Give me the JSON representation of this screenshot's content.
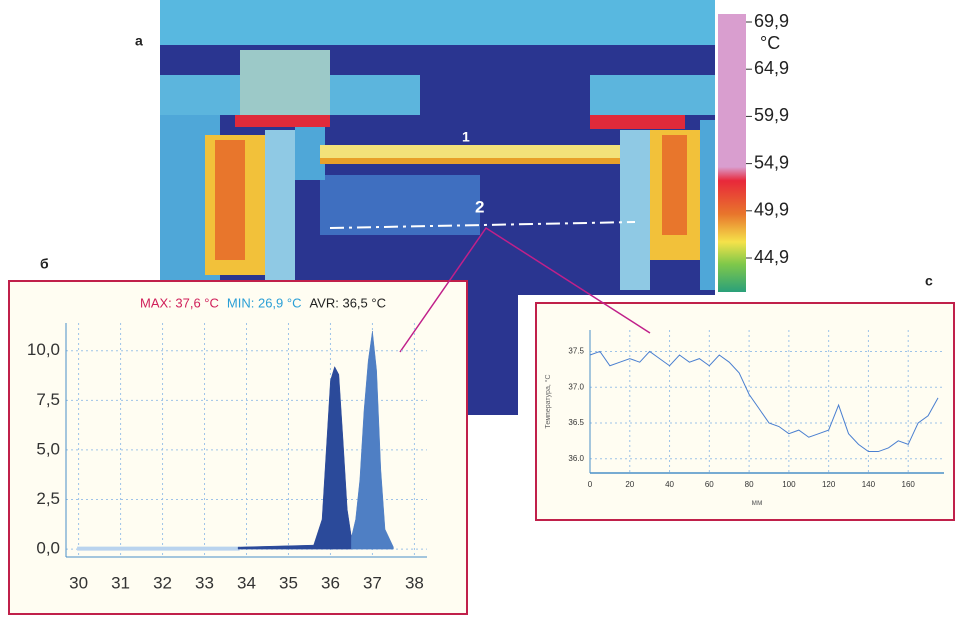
{
  "panel_labels": {
    "a": "а",
    "b": "б",
    "c": "c"
  },
  "thermal": {
    "unit": "°C",
    "markers": [
      "1",
      "2"
    ],
    "scale_ticks": [
      {
        "value": 69.9,
        "label": "69,9"
      },
      {
        "value": 64.9,
        "label": "64,9"
      },
      {
        "value": 59.9,
        "label": "59,9"
      },
      {
        "value": 54.9,
        "label": "54,9"
      },
      {
        "value": 49.9,
        "label": "49,9"
      },
      {
        "value": 44.9,
        "label": "44,9"
      }
    ],
    "scale_lim": [
      44.9,
      69.9
    ]
  },
  "chart_data": [
    {
      "type": "area",
      "stats": [
        {
          "text": "MAX: 37,6 °C",
          "color": "#d0205a"
        },
        {
          "text": "MIN: 26,9 °C",
          "color": "#2a9fd6"
        },
        {
          "text": "AVR: 36,5 °C",
          "color": "#222222"
        }
      ],
      "x": [
        30,
        33.8,
        35.6,
        35.8,
        35.9,
        36.0,
        36.1,
        36.2,
        36.3,
        36.4,
        36.5,
        36.6,
        36.7,
        36.8,
        36.9,
        37.0,
        37.1,
        37.2,
        37.3,
        37.5
      ],
      "series": [
        {
          "color": "#b9d3ee",
          "values": [
            0.05,
            0.05,
            null,
            null,
            null,
            null,
            null,
            null,
            null,
            null,
            null,
            null,
            null,
            null,
            null,
            null,
            null,
            null,
            null,
            null
          ]
        },
        {
          "color": "#2b4a9a",
          "values": [
            null,
            0.1,
            0.2,
            1.5,
            5,
            8.5,
            9.2,
            8.8,
            5.5,
            2,
            0.6,
            null,
            null,
            null,
            null,
            null,
            null,
            null,
            null,
            null
          ]
        },
        {
          "color": "#4f7fc4",
          "values": [
            null,
            null,
            null,
            null,
            null,
            null,
            null,
            null,
            null,
            null,
            0.6,
            1.5,
            3.5,
            7,
            9.5,
            11,
            9,
            4,
            1,
            0.1
          ]
        }
      ],
      "xlim": [
        29.7,
        38.3
      ],
      "ylim": [
        -0.4,
        11.4
      ],
      "xticks": [
        30,
        31,
        32,
        33,
        34,
        35,
        36,
        37,
        38
      ],
      "yticks": [
        {
          "value": 0,
          "label": "0,0"
        },
        {
          "value": 2.5,
          "label": "2,5"
        },
        {
          "value": 5,
          "label": "5,0"
        },
        {
          "value": 7.5,
          "label": "7,5"
        },
        {
          "value": 10,
          "label": "10,0"
        }
      ],
      "grid": true
    },
    {
      "type": "line",
      "y_label": "Температура, °С",
      "x_label": "мм",
      "x": [
        0,
        5,
        10,
        15,
        20,
        25,
        30,
        35,
        40,
        45,
        50,
        55,
        60,
        65,
        70,
        75,
        80,
        85,
        90,
        95,
        100,
        105,
        110,
        115,
        120,
        125,
        130,
        135,
        140,
        145,
        150,
        155,
        160,
        165,
        170,
        175
      ],
      "series": [
        {
          "color": "#4a7fd0",
          "values": [
            37.45,
            37.5,
            37.3,
            37.35,
            37.4,
            37.35,
            37.5,
            37.4,
            37.3,
            37.45,
            37.35,
            37.4,
            37.3,
            37.45,
            37.35,
            37.2,
            36.9,
            36.7,
            36.5,
            36.45,
            36.35,
            36.4,
            36.3,
            36.35,
            36.4,
            36.75,
            36.35,
            36.2,
            36.1,
            36.1,
            36.15,
            36.25,
            36.2,
            36.5,
            36.6,
            36.85
          ]
        }
      ],
      "xlim": [
        0,
        178
      ],
      "ylim": [
        35.8,
        37.8
      ],
      "xticks": [
        0,
        20,
        40,
        60,
        80,
        100,
        120,
        140,
        160
      ],
      "yticks": [
        {
          "value": 37.5,
          "label": "37.5"
        },
        {
          "value": 37,
          "label": "37.0"
        },
        {
          "value": 36.5,
          "label": "36.5"
        },
        {
          "value": 36,
          "label": "36.0"
        }
      ],
      "grid": true
    }
  ]
}
